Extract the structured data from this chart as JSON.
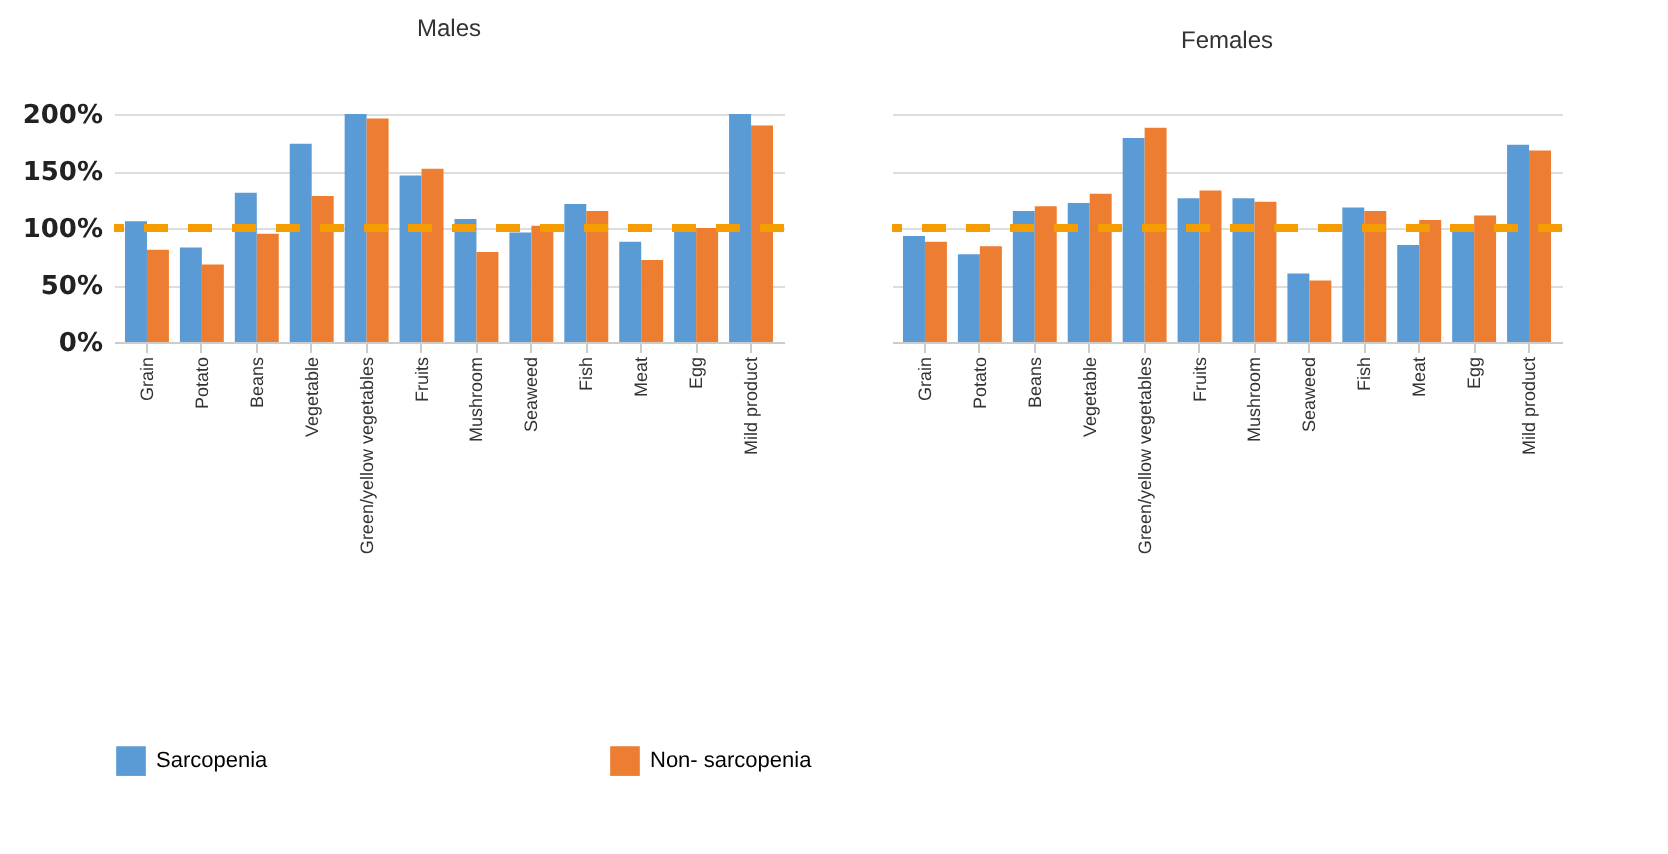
{
  "chart_data": [
    {
      "type": "bar",
      "title": "Males",
      "categories": [
        "Grain",
        "Potato",
        "Beans",
        "Vegetable",
        "Green/yellow vegetables",
        "Fruits",
        "Mushroom",
        "Seaweed",
        "Fish",
        "Meat",
        "Egg",
        "Mild product"
      ],
      "series": [
        {
          "name": "Sarcopenia",
          "color": "#5b9bd5",
          "values": [
            106,
            83,
            131,
            174,
            200,
            146,
            108,
            96,
            121,
            88,
            100,
            200
          ]
        },
        {
          "name": "Non- sarcopenia",
          "color": "#ed7d31",
          "values": [
            81,
            68,
            95,
            128,
            196,
            152,
            79,
            102,
            115,
            72,
            100,
            190
          ]
        }
      ],
      "ylim": [
        0,
        200
      ],
      "yticks": [
        {
          "value": 0,
          "label": "0%"
        },
        {
          "value": 50,
          "label": "50%"
        },
        {
          "value": 100,
          "label": "100%"
        },
        {
          "value": 150,
          "label": "150%"
        },
        {
          "value": 200,
          "label": "200%"
        }
      ],
      "grid": "y",
      "legend": "bottom",
      "ref_lines": [
        {
          "axis": "y",
          "value": 100,
          "color": "#f59c00",
          "line_style": "dashed"
        }
      ]
    },
    {
      "type": "bar",
      "title": "Females",
      "categories": [
        "Grain",
        "Potato",
        "Beans",
        "Vegetable",
        "Green/yellow vegetables",
        "Fruits",
        "Mushroom",
        "Seaweed",
        "Fish",
        "Meat",
        "Egg",
        "Mild product"
      ],
      "series": [
        {
          "name": "Sarcopenia",
          "color": "#5b9bd5",
          "values": [
            93,
            77,
            115,
            122,
            179,
            126,
            126,
            60,
            118,
            85,
            100,
            173
          ]
        },
        {
          "name": "Non- sarcopenia",
          "color": "#ed7d31",
          "values": [
            88,
            84,
            119,
            130,
            188,
            133,
            123,
            54,
            115,
            107,
            111,
            168
          ]
        }
      ],
      "ylim": [
        0,
        200
      ],
      "yticks": [
        0,
        50,
        100,
        150,
        200
      ],
      "grid": "y",
      "legend": "bottom",
      "tick_labels": "x",
      "ref_lines": [
        {
          "axis": "y",
          "value": 100,
          "color": "#f59c00",
          "line_style": "dashed"
        }
      ]
    }
  ]
}
